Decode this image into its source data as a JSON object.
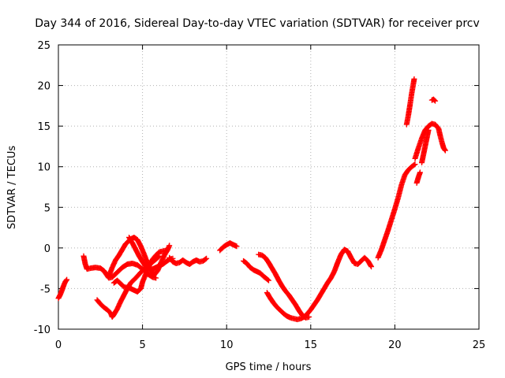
{
  "chart_data": {
    "type": "scatter",
    "title": "Day 344 of 2016, Sidereal Day-to-day VTEC variation (SDTVAR) for receiver prcv",
    "xlabel": "GPS time / hours",
    "ylabel": "SDTVAR / TECUs",
    "xlim": [
      0,
      25
    ],
    "ylim": [
      -10,
      25
    ],
    "xticks": [
      0,
      5,
      10,
      15,
      20,
      25
    ],
    "yticks": [
      -10,
      -5,
      0,
      5,
      10,
      15,
      20,
      25
    ],
    "grid": true,
    "marker": "+",
    "color": "#ff0000",
    "series": [
      {
        "name": "s1",
        "points": [
          [
            0,
            -6.2
          ],
          [
            0.1,
            -5.8
          ],
          [
            0.2,
            -5.3
          ],
          [
            0.3,
            -4.7
          ],
          [
            0.4,
            -4.2
          ],
          [
            0.5,
            -3.9
          ]
        ]
      },
      {
        "name": "s2",
        "points": [
          [
            1.5,
            -1.0
          ],
          [
            1.6,
            -2.0
          ],
          [
            1.7,
            -2.6
          ],
          [
            1.9,
            -2.5
          ],
          [
            2.2,
            -2.4
          ],
          [
            2.5,
            -2.5
          ],
          [
            2.7,
            -2.8
          ],
          [
            2.9,
            -3.4
          ],
          [
            3.0,
            -3.7
          ],
          [
            3.2,
            -3.6
          ],
          [
            3.5,
            -3.0
          ],
          [
            3.8,
            -2.4
          ],
          [
            4.1,
            -2.0
          ],
          [
            4.4,
            -1.9
          ],
          [
            4.7,
            -2.1
          ],
          [
            5.0,
            -2.6
          ],
          [
            5.3,
            -3.2
          ],
          [
            5.6,
            -3.6
          ],
          [
            5.8,
            -3.7
          ]
        ]
      },
      {
        "name": "s3",
        "points": [
          [
            2.3,
            -6.4
          ],
          [
            2.5,
            -6.9
          ],
          [
            2.7,
            -7.3
          ],
          [
            2.9,
            -7.6
          ],
          [
            3.1,
            -8.0
          ],
          [
            3.2,
            -8.5
          ],
          [
            3.3,
            -8.2
          ],
          [
            3.5,
            -7.5
          ],
          [
            3.7,
            -6.6
          ],
          [
            3.9,
            -5.8
          ],
          [
            4.1,
            -5.0
          ],
          [
            4.3,
            -4.3
          ],
          [
            4.6,
            -3.7
          ],
          [
            4.9,
            -3.0
          ],
          [
            5.2,
            -2.4
          ],
          [
            5.5,
            -1.9
          ],
          [
            5.8,
            -1.4
          ],
          [
            6.0,
            -1.0
          ]
        ]
      },
      {
        "name": "s4",
        "points": [
          [
            3.0,
            -3.5
          ],
          [
            3.2,
            -2.4
          ],
          [
            3.4,
            -1.5
          ],
          [
            3.6,
            -0.9
          ],
          [
            3.8,
            -0.2
          ],
          [
            4.0,
            0.5
          ],
          [
            4.3,
            1.1
          ],
          [
            4.5,
            1.3
          ],
          [
            4.7,
            1.0
          ],
          [
            4.9,
            0.2
          ],
          [
            5.1,
            -0.8
          ],
          [
            5.3,
            -1.9
          ],
          [
            5.5,
            -2.8
          ],
          [
            5.7,
            -3.3
          ],
          [
            5.9,
            -2.8
          ],
          [
            6.1,
            -1.8
          ],
          [
            6.3,
            -0.9
          ],
          [
            6.5,
            -0.2
          ],
          [
            6.6,
            0.3
          ]
        ]
      },
      {
        "name": "s5",
        "points": [
          [
            3.3,
            -4.3
          ],
          [
            3.5,
            -4.0
          ],
          [
            3.7,
            -4.4
          ],
          [
            3.9,
            -4.8
          ],
          [
            4.1,
            -4.9
          ],
          [
            4.3,
            -5.0
          ],
          [
            4.5,
            -5.2
          ],
          [
            4.7,
            -5.4
          ],
          [
            4.9,
            -5.0
          ],
          [
            5.0,
            -4.2
          ],
          [
            5.2,
            -3.2
          ],
          [
            5.4,
            -2.2
          ],
          [
            5.6,
            -1.4
          ],
          [
            5.8,
            -0.9
          ],
          [
            6.0,
            -0.5
          ],
          [
            6.2,
            -0.4
          ],
          [
            6.4,
            -0.3
          ]
        ]
      },
      {
        "name": "s6",
        "points": [
          [
            4.2,
            1.3
          ],
          [
            4.4,
            0.6
          ],
          [
            4.6,
            -0.2
          ],
          [
            4.8,
            -1.0
          ],
          [
            5.0,
            -1.7
          ],
          [
            5.2,
            -2.3
          ],
          [
            5.4,
            -2.6
          ],
          [
            5.6,
            -2.6
          ],
          [
            5.8,
            -2.4
          ],
          [
            6.0,
            -2.2
          ],
          [
            6.2,
            -2.0
          ],
          [
            6.4,
            -1.7
          ],
          [
            6.6,
            -1.4
          ],
          [
            6.8,
            -1.3
          ]
        ]
      },
      {
        "name": "s7",
        "points": [
          [
            6.6,
            -1.2
          ],
          [
            6.8,
            -1.7
          ],
          [
            7.0,
            -1.9
          ],
          [
            7.2,
            -1.8
          ],
          [
            7.4,
            -1.5
          ],
          [
            7.6,
            -1.8
          ],
          [
            7.8,
            -2.0
          ],
          [
            8.0,
            -1.7
          ],
          [
            8.2,
            -1.5
          ],
          [
            8.4,
            -1.7
          ],
          [
            8.6,
            -1.6
          ],
          [
            8.8,
            -1.3
          ]
        ]
      },
      {
        "name": "s8",
        "points": [
          [
            9.6,
            -0.3
          ],
          [
            9.8,
            0.1
          ],
          [
            10.0,
            0.4
          ],
          [
            10.2,
            0.6
          ],
          [
            10.4,
            0.4
          ],
          [
            10.6,
            0.2
          ]
        ]
      },
      {
        "name": "s9",
        "points": [
          [
            11.0,
            -1.6
          ],
          [
            11.2,
            -1.9
          ],
          [
            11.4,
            -2.4
          ],
          [
            11.6,
            -2.7
          ],
          [
            11.8,
            -2.9
          ],
          [
            12.0,
            -3.1
          ],
          [
            12.2,
            -3.5
          ],
          [
            12.5,
            -4.0
          ]
        ]
      },
      {
        "name": "s10",
        "points": [
          [
            11.9,
            -0.8
          ],
          [
            12.1,
            -0.9
          ],
          [
            12.3,
            -1.2
          ],
          [
            12.5,
            -1.8
          ],
          [
            12.7,
            -2.5
          ],
          [
            12.9,
            -3.2
          ],
          [
            13.1,
            -4.0
          ],
          [
            13.3,
            -4.7
          ],
          [
            13.5,
            -5.3
          ],
          [
            13.7,
            -5.8
          ],
          [
            13.9,
            -6.4
          ],
          [
            14.1,
            -7.0
          ],
          [
            14.3,
            -7.7
          ],
          [
            14.5,
            -8.3
          ],
          [
            14.7,
            -8.6
          ],
          [
            14.9,
            -8.5
          ]
        ]
      },
      {
        "name": "s11",
        "points": [
          [
            12.4,
            -5.5
          ],
          [
            12.6,
            -6.2
          ],
          [
            12.8,
            -6.8
          ],
          [
            13.0,
            -7.3
          ],
          [
            13.2,
            -7.7
          ],
          [
            13.4,
            -8.1
          ],
          [
            13.6,
            -8.4
          ],
          [
            13.8,
            -8.6
          ],
          [
            14.0,
            -8.7
          ],
          [
            14.2,
            -8.8
          ],
          [
            14.4,
            -8.7
          ],
          [
            14.6,
            -8.5
          ],
          [
            14.8,
            -8.1
          ],
          [
            15.0,
            -7.6
          ],
          [
            15.2,
            -7.0
          ],
          [
            15.4,
            -6.4
          ],
          [
            15.6,
            -5.7
          ],
          [
            15.8,
            -5.0
          ],
          [
            16.0,
            -4.3
          ],
          [
            16.2,
            -3.7
          ],
          [
            16.4,
            -2.9
          ],
          [
            16.6,
            -1.8
          ],
          [
            16.8,
            -0.8
          ],
          [
            17.0,
            -0.2
          ],
          [
            17.2,
            -0.4
          ],
          [
            17.4,
            -1.2
          ],
          [
            17.6,
            -1.9
          ],
          [
            17.8,
            -2.0
          ],
          [
            18.0,
            -1.6
          ],
          [
            18.2,
            -1.2
          ],
          [
            18.4,
            -1.6
          ],
          [
            18.6,
            -2.3
          ]
        ]
      },
      {
        "name": "s12",
        "points": [
          [
            19.0,
            -1.2
          ],
          [
            19.2,
            -0.2
          ],
          [
            19.4,
            1.0
          ],
          [
            19.6,
            2.2
          ],
          [
            19.8,
            3.5
          ],
          [
            20.0,
            4.8
          ],
          [
            20.2,
            6.2
          ],
          [
            20.4,
            7.8
          ],
          [
            20.6,
            9.0
          ],
          [
            20.8,
            9.6
          ],
          [
            21.0,
            10.0
          ],
          [
            21.2,
            10.3
          ]
        ]
      },
      {
        "name": "s13",
        "points": [
          [
            20.7,
            15.2
          ],
          [
            20.8,
            16.3
          ],
          [
            20.9,
            17.6
          ],
          [
            21.0,
            19.0
          ],
          [
            21.1,
            20.2
          ],
          [
            21.15,
            20.8
          ]
        ]
      },
      {
        "name": "s14",
        "points": [
          [
            21.2,
            11.0
          ],
          [
            21.4,
            12.3
          ],
          [
            21.6,
            13.5
          ],
          [
            21.8,
            14.5
          ],
          [
            22.0,
            15.0
          ],
          [
            22.2,
            15.3
          ],
          [
            22.4,
            15.2
          ],
          [
            22.6,
            14.7
          ],
          [
            22.7,
            13.8
          ],
          [
            22.8,
            13.0
          ],
          [
            22.9,
            12.3
          ],
          [
            23.0,
            12.0
          ]
        ]
      },
      {
        "name": "s15",
        "points": [
          [
            21.3,
            8.0
          ],
          [
            21.4,
            8.7
          ],
          [
            21.5,
            9.3
          ]
        ]
      },
      {
        "name": "s16",
        "points": [
          [
            22.2,
            18.2
          ],
          [
            22.3,
            18.3
          ],
          [
            22.4,
            18.1
          ]
        ]
      },
      {
        "name": "s17",
        "points": [
          [
            21.6,
            10.5
          ],
          [
            21.7,
            11.5
          ],
          [
            21.8,
            12.5
          ],
          [
            21.9,
            13.5
          ],
          [
            22.0,
            14.5
          ]
        ]
      }
    ]
  }
}
